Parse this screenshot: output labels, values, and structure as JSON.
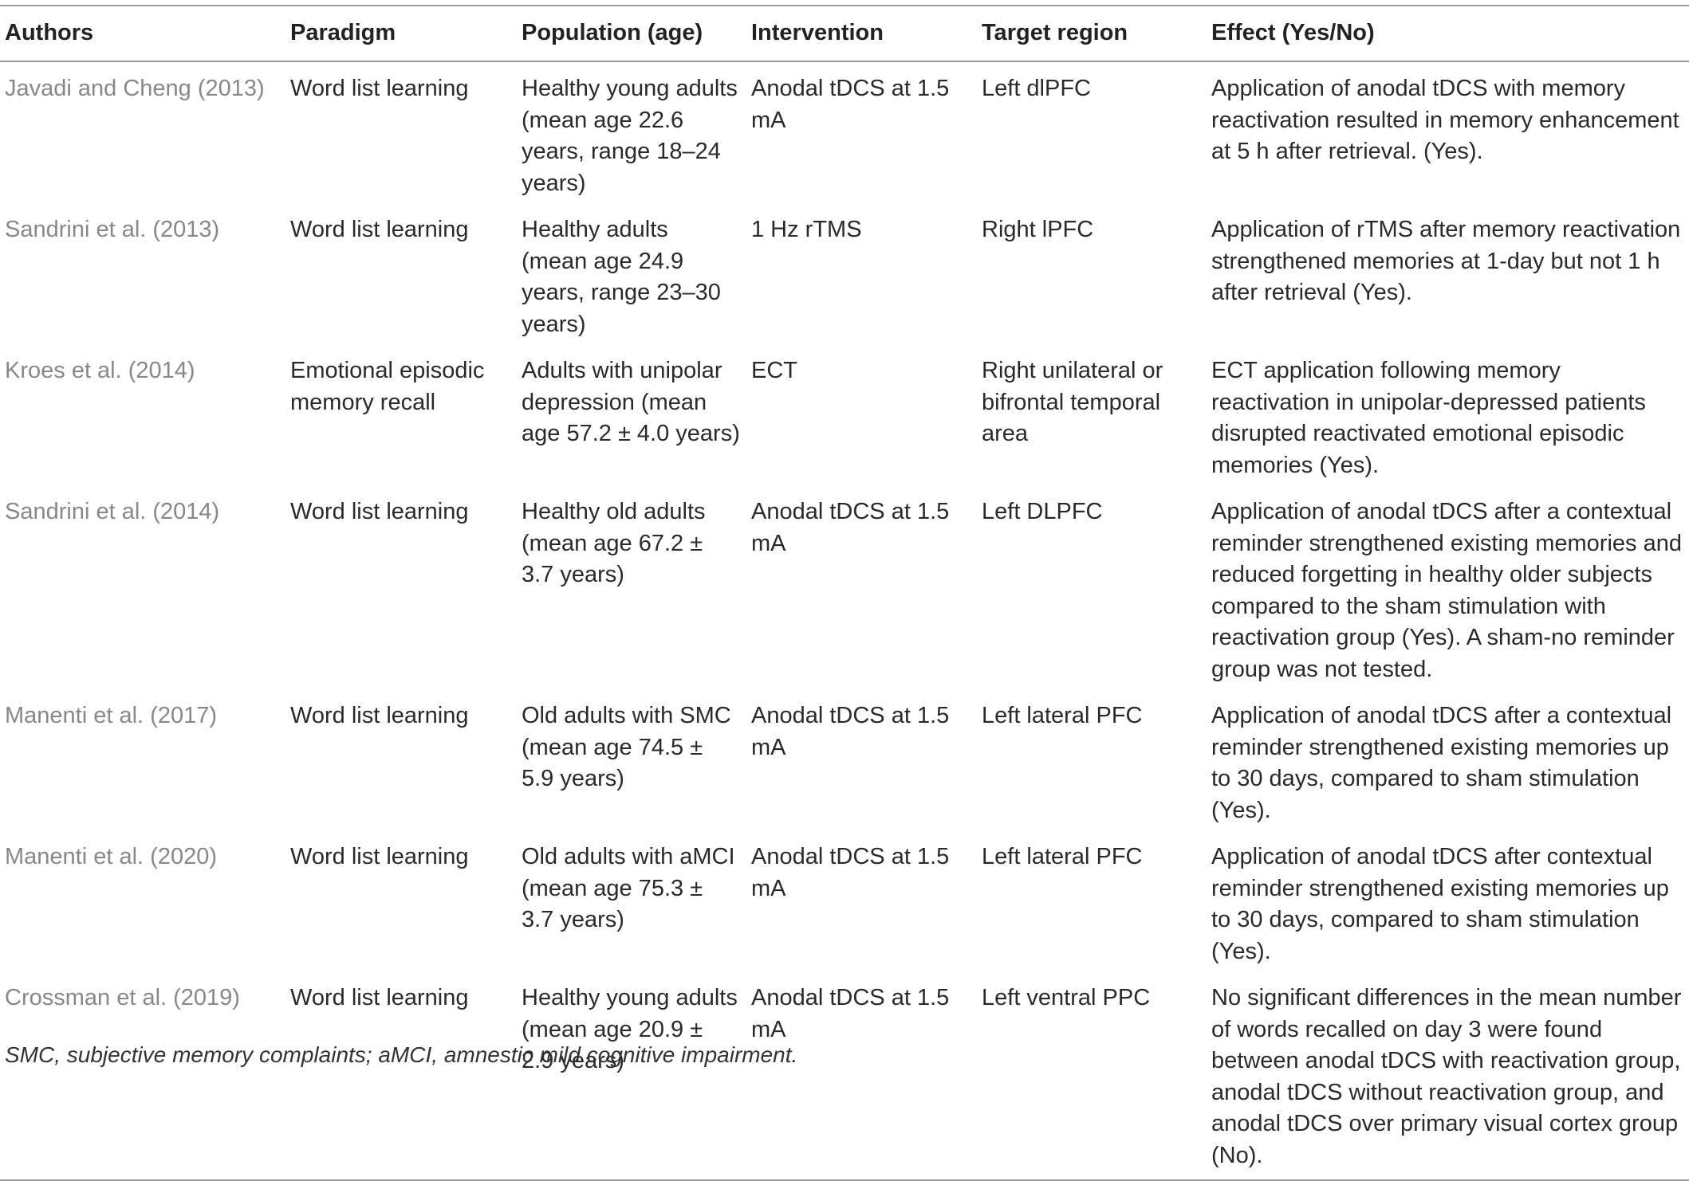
{
  "headers": [
    "Authors",
    "Paradigm",
    "Population (age)",
    "Intervention",
    "Target region",
    "Effect (Yes/No)"
  ],
  "rows": [
    {
      "authors": "Javadi and Cheng (2013)",
      "paradigm": "Word list learning",
      "population": "Healthy young adults (mean age 22.6 years, range 18–24 years)",
      "intervention": "Anodal tDCS at 1.5 mA",
      "target": "Left dlPFC",
      "effect": "Application of anodal tDCS with memory reactivation resulted in memory enhancement at 5 h after retrieval. (Yes)."
    },
    {
      "authors": "Sandrini et al. (2013)",
      "paradigm": "Word list learning",
      "population": "Healthy adults (mean age 24.9 years, range 23–30 years)",
      "intervention": "1 Hz rTMS",
      "target": "Right lPFC",
      "effect": "Application of rTMS after memory reactivation strengthened memories at 1-day but not 1 h after retrieval (Yes)."
    },
    {
      "authors": "Kroes et al. (2014)",
      "paradigm": "Emotional episodic memory recall",
      "population": "Adults with unipolar depression (mean age 57.2 ± 4.0 years)",
      "intervention": "ECT",
      "target": "Right unilateral or bifrontal temporal area",
      "effect": "ECT application following memory reactivation in unipolar-depressed patients disrupted reactivated emotional episodic memories (Yes)."
    },
    {
      "authors": "Sandrini et al. (2014)",
      "paradigm": "Word list learning",
      "population": "Healthy old adults (mean age 67.2 ± 3.7 years)",
      "intervention": "Anodal tDCS at 1.5 mA",
      "target": "Left DLPFC",
      "effect": "Application of anodal tDCS after a contextual reminder strengthened existing memories and reduced forgetting in healthy older subjects compared to the sham stimulation with reactivation group (Yes). A sham-no reminder group was not tested."
    },
    {
      "authors": "Manenti et al. (2017)",
      "paradigm": "Word list learning",
      "population": "Old adults with SMC (mean age 74.5 ± 5.9 years)",
      "intervention": "Anodal tDCS at 1.5 mA",
      "target": "Left lateral PFC",
      "effect": "Application of anodal tDCS after a contextual reminder strengthened existing memories up to 30 days, compared to sham stimulation (Yes)."
    },
    {
      "authors": "Manenti et al. (2020)",
      "paradigm": "Word list learning",
      "population": "Old adults with aMCI (mean age 75.3 ± 3.7 years)",
      "intervention": "Anodal tDCS at 1.5 mA",
      "target": "Left lateral PFC",
      "effect": "Application of anodal tDCS after contextual reminder strengthened existing memories up to 30 days, compared to sham stimulation (Yes)."
    },
    {
      "authors": "Crossman et al. (2019)",
      "paradigm": "Word list learning",
      "population": "Healthy young adults (mean age 20.9 ± 2.9 years)",
      "intervention": "Anodal tDCS at 1.5 mA",
      "target": "Left ventral PPC",
      "effect": "No significant differences in the mean number of words recalled on day 3 were found between anodal tDCS with reactivation group, anodal tDCS without reactivation group, and anodal tDCS over primary visual cortex group (No)."
    }
  ],
  "footnote": "SMC, subjective memory complaints; aMCI, amnestic mild cognitive impairment."
}
